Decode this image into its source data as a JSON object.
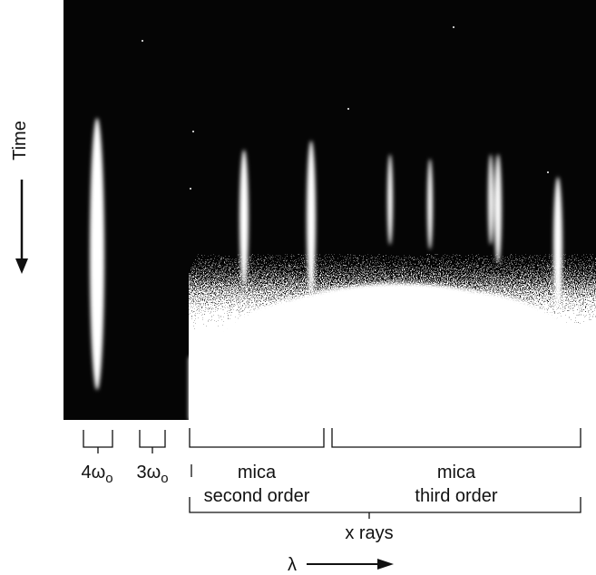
{
  "axis_labels": {
    "time": "Time",
    "wavelength": "λ"
  },
  "labels": [
    {
      "main": "4ω",
      "subscript": "o"
    },
    {
      "main": "3ω",
      "subscript": "o"
    },
    {
      "line1": "mica",
      "line2": "second order"
    },
    {
      "line1": "mica",
      "line2": "third order"
    },
    {
      "line1": "x rays"
    }
  ]
}
